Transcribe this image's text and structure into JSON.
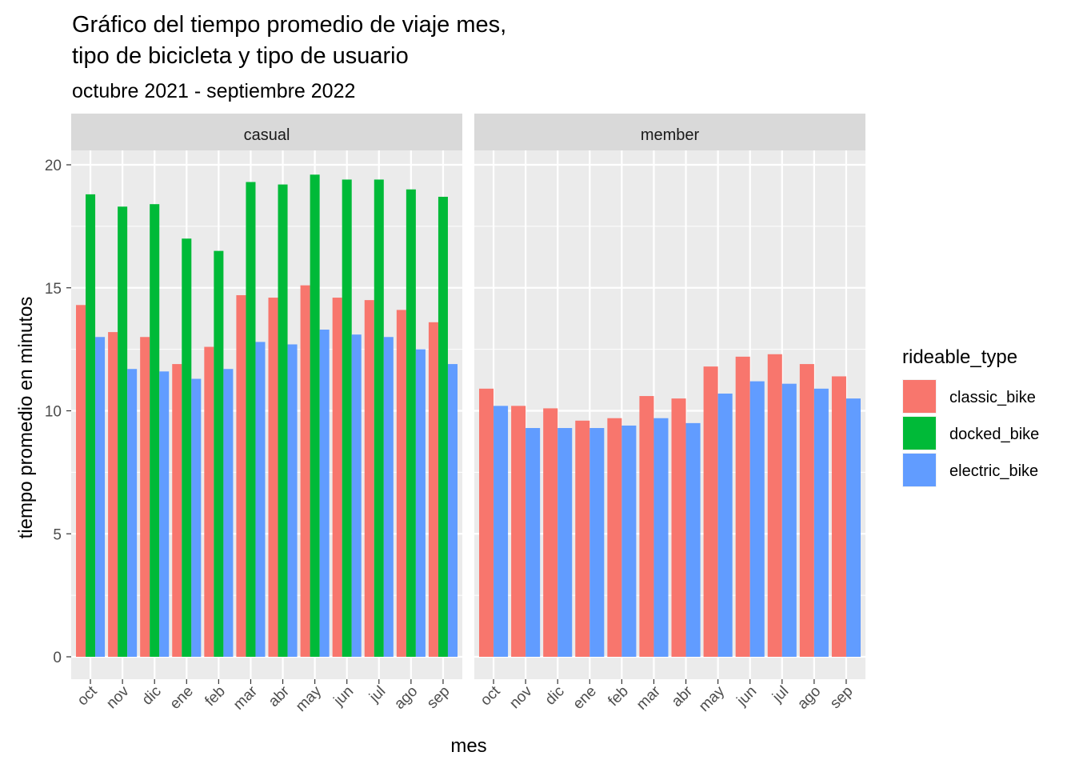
{
  "chart_data": {
    "type": "bar",
    "title_line1": "Gráfico del tiempo promedio de viaje mes,",
    "title_line2": "tipo de bicicleta y tipo de usuario",
    "subtitle": "octubre 2021 - septiembre 2022",
    "xlabel": "mes",
    "ylabel": "tiempo promedio en minutos",
    "ylim": [
      0,
      20
    ],
    "y_ticks": [
      "0",
      "5",
      "10",
      "15",
      "20"
    ],
    "categories": [
      "oct",
      "nov",
      "dic",
      "ene",
      "feb",
      "mar",
      "abr",
      "may",
      "jun",
      "jul",
      "ago",
      "sep"
    ],
    "grid": true,
    "legend": {
      "title": "rideable_type",
      "position": "right",
      "items": [
        {
          "label": "classic_bike",
          "color": "#F8766D"
        },
        {
          "label": "docked_bike",
          "color": "#00BA38"
        },
        {
          "label": "electric_bike",
          "color": "#619CFF"
        }
      ]
    },
    "facets": [
      {
        "label": "casual",
        "series": [
          {
            "name": "classic_bike",
            "values": [
              14.3,
              13.2,
              13.0,
              11.9,
              12.6,
              14.7,
              14.6,
              15.1,
              14.6,
              14.5,
              14.1,
              13.6
            ]
          },
          {
            "name": "docked_bike",
            "values": [
              18.8,
              18.3,
              18.4,
              17.0,
              16.5,
              19.3,
              19.2,
              19.6,
              19.4,
              19.4,
              19.0,
              18.7
            ]
          },
          {
            "name": "electric_bike",
            "values": [
              13.0,
              11.7,
              11.6,
              11.3,
              11.7,
              12.8,
              12.7,
              13.3,
              13.1,
              13.0,
              12.5,
              11.9
            ]
          }
        ]
      },
      {
        "label": "member",
        "series": [
          {
            "name": "classic_bike",
            "values": [
              10.9,
              10.2,
              10.1,
              9.6,
              9.7,
              10.6,
              10.5,
              11.8,
              12.2,
              12.3,
              11.9,
              11.4
            ]
          },
          {
            "name": "electric_bike",
            "values": [
              10.2,
              9.3,
              9.3,
              9.3,
              9.4,
              9.7,
              9.5,
              10.7,
              11.2,
              11.1,
              10.9,
              10.5
            ]
          }
        ]
      }
    ]
  }
}
